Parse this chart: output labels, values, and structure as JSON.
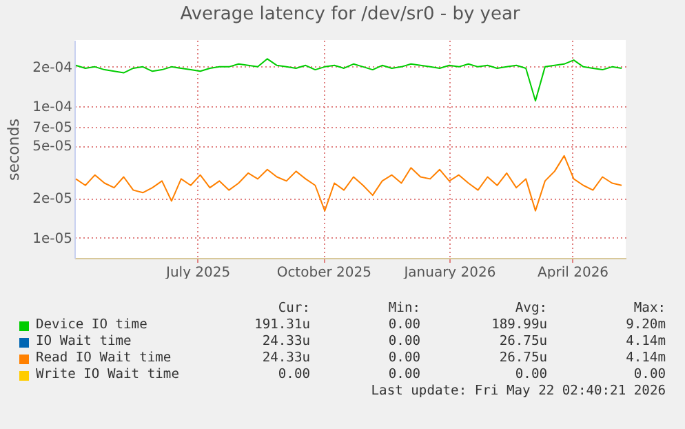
{
  "chart_data": {
    "type": "line",
    "title": "Average latency for /dev/sr0 - by year",
    "ylabel": "seconds",
    "log": "y",
    "grid": true,
    "legend": "bottom",
    "x": [
      "2025-04-03",
      "2025-04-10",
      "2025-04-17",
      "2025-04-24",
      "2025-05-01",
      "2025-05-08",
      "2025-05-15",
      "2025-05-22",
      "2025-05-29",
      "2025-06-05",
      "2025-06-12",
      "2025-06-19",
      "2025-06-26",
      "2025-07-03",
      "2025-07-10",
      "2025-07-17",
      "2025-07-24",
      "2025-07-31",
      "2025-08-07",
      "2025-08-14",
      "2025-08-21",
      "2025-08-28",
      "2025-09-04",
      "2025-09-11",
      "2025-09-18",
      "2025-09-25",
      "2025-10-02",
      "2025-10-09",
      "2025-10-16",
      "2025-10-23",
      "2025-10-30",
      "2025-11-06",
      "2025-11-13",
      "2025-11-20",
      "2025-11-27",
      "2025-12-04",
      "2025-12-11",
      "2025-12-18",
      "2025-12-25",
      "2026-01-01",
      "2026-01-08",
      "2026-01-15",
      "2026-01-22",
      "2026-01-29",
      "2026-02-05",
      "2026-02-12",
      "2026-02-19",
      "2026-02-26",
      "2026-03-05",
      "2026-03-12",
      "2026-03-19",
      "2026-03-26",
      "2026-04-02",
      "2026-04-09",
      "2026-04-16",
      "2026-04-23",
      "2026-04-30",
      "2026-05-07"
    ],
    "xlim": [
      "2025-04-02",
      "2026-05-10"
    ],
    "xticks": [
      {
        "value": "2025-07-01",
        "label": "July 2025"
      },
      {
        "value": "2025-10-01",
        "label": "October 2025"
      },
      {
        "value": "2026-01-01",
        "label": "January 2026"
      },
      {
        "value": "2026-04-01",
        "label": "April 2026"
      }
    ],
    "ylim": [
      7e-06,
      0.00032
    ],
    "yticks": [
      {
        "value": 1e-05,
        "label": "1e-05"
      },
      {
        "value": 2e-05,
        "label": "2e-05"
      },
      {
        "value": 5e-05,
        "label": "5e-05"
      },
      {
        "value": 7e-05,
        "label": "7e-05"
      },
      {
        "value": 0.0001,
        "label": "1e-04"
      },
      {
        "value": 0.0002,
        "label": "2e-04"
      }
    ],
    "series": [
      {
        "name": "Device IO time",
        "color": "#00cc00",
        "values": [
          0.000205,
          0.000195,
          0.0002,
          0.00019,
          0.000185,
          0.00018,
          0.000195,
          0.0002,
          0.000185,
          0.00019,
          0.0002,
          0.000195,
          0.00019,
          0.000185,
          0.000195,
          0.0002,
          0.0002,
          0.00021,
          0.000205,
          0.0002,
          0.00023,
          0.000205,
          0.0002,
          0.000195,
          0.000205,
          0.00019,
          0.0002,
          0.000205,
          0.000195,
          0.00021,
          0.0002,
          0.00019,
          0.000205,
          0.000195,
          0.0002,
          0.00021,
          0.000205,
          0.0002,
          0.000195,
          0.000205,
          0.0002,
          0.00021,
          0.0002,
          0.000205,
          0.000195,
          0.0002,
          0.000205,
          0.000195,
          0.00011,
          0.0002,
          0.000205,
          0.00021,
          0.000225,
          0.0002,
          0.000195,
          0.00019,
          0.0002,
          0.000195
        ]
      },
      {
        "name": "IO Wait time",
        "color": "#0066b3",
        "values": [
          null,
          null,
          null,
          null,
          null,
          null,
          null,
          null,
          null,
          null,
          null,
          null,
          null,
          null,
          null,
          null,
          null,
          null,
          null,
          null,
          null,
          null,
          null,
          null,
          null,
          null,
          null,
          null,
          null,
          null,
          null,
          null,
          null,
          null,
          null,
          null,
          null,
          null,
          null,
          null,
          null,
          null,
          null,
          null,
          null,
          null,
          null,
          null,
          null,
          null,
          null,
          null,
          null,
          null,
          null,
          null,
          null,
          null
        ]
      },
      {
        "name": "Read IO Wait time",
        "color": "#ff8000",
        "values": [
          2.8e-05,
          2.5e-05,
          3e-05,
          2.6e-05,
          2.4e-05,
          2.9e-05,
          2.3e-05,
          2.2e-05,
          2.4e-05,
          2.7e-05,
          1.9e-05,
          2.8e-05,
          2.5e-05,
          3e-05,
          2.4e-05,
          2.7e-05,
          2.3e-05,
          2.6e-05,
          3.1e-05,
          2.8e-05,
          3.3e-05,
          2.9e-05,
          2.7e-05,
          3.2e-05,
          2.8e-05,
          2.5e-05,
          1.6e-05,
          2.6e-05,
          2.3e-05,
          2.9e-05,
          2.5e-05,
          2.1e-05,
          2.7e-05,
          3e-05,
          2.6e-05,
          3.4e-05,
          2.9e-05,
          2.8e-05,
          3.3e-05,
          2.7e-05,
          3e-05,
          2.6e-05,
          2.3e-05,
          2.9e-05,
          2.5e-05,
          3.1e-05,
          2.4e-05,
          2.8e-05,
          1.6e-05,
          2.7e-05,
          3.2e-05,
          4.2e-05,
          2.8e-05,
          2.5e-05,
          2.3e-05,
          2.9e-05,
          2.6e-05,
          2.5e-05
        ]
      },
      {
        "name": "Write IO Wait time",
        "color": "#ffcc00",
        "values": [
          null,
          null,
          null,
          null,
          null,
          null,
          null,
          null,
          null,
          null,
          null,
          null,
          null,
          null,
          null,
          null,
          null,
          null,
          null,
          null,
          null,
          null,
          null,
          null,
          null,
          null,
          null,
          null,
          null,
          null,
          null,
          null,
          null,
          null,
          null,
          null,
          null,
          null,
          null,
          null,
          null,
          null,
          null,
          null,
          null,
          null,
          null,
          null,
          null,
          null,
          null,
          null,
          null,
          null,
          null,
          null,
          null,
          null
        ]
      }
    ],
    "annotations": [
      "Cur:",
      "Min:",
      "Avg:",
      "Max:",
      "191.31u",
      "0.00",
      "189.99u",
      "9.20m",
      "24.33u",
      "0.00",
      "26.75u",
      "4.14m",
      "24.33u",
      "0.00",
      "26.75u",
      "4.14m",
      "0.00",
      "0.00",
      "0.00",
      "0.00",
      "Last update: Fri May 22 02:40:21 2026"
    ]
  }
}
